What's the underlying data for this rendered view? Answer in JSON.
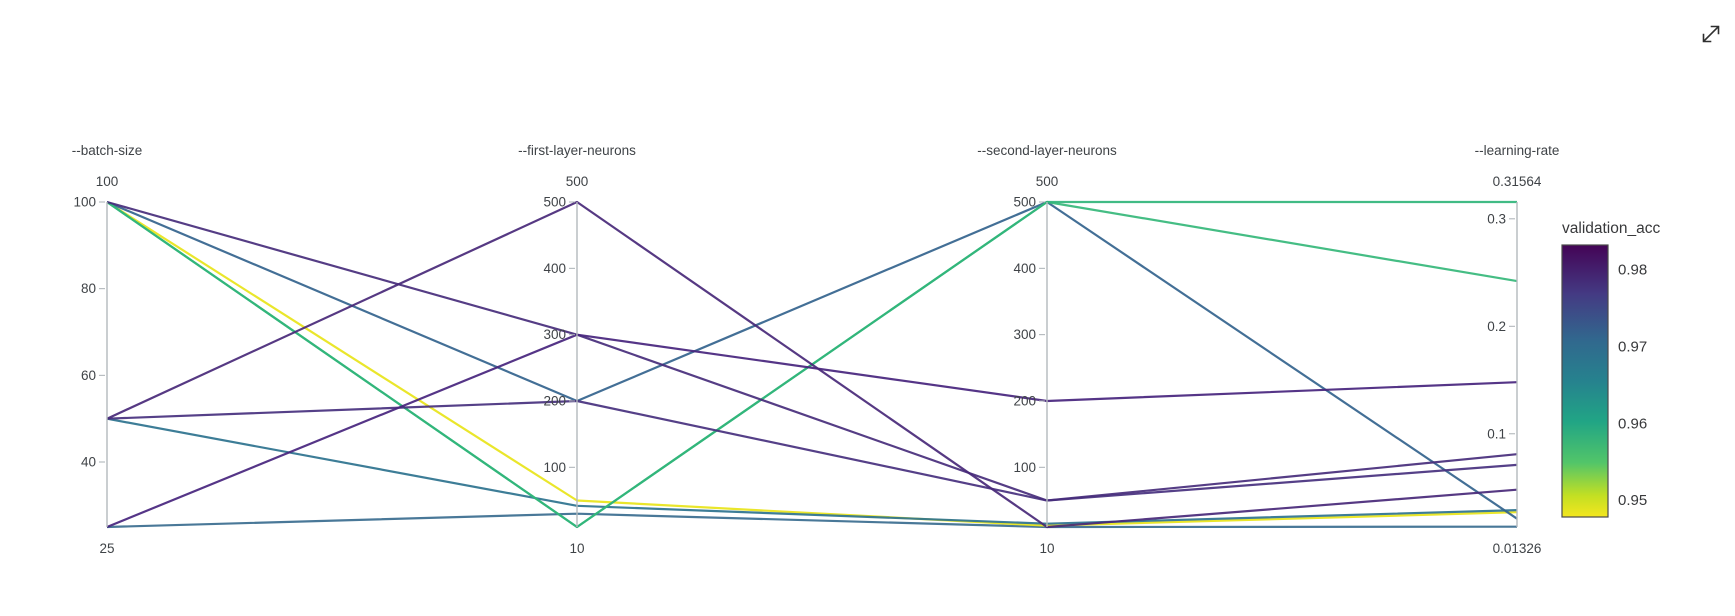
{
  "expand_button": {
    "icon": "expand-diagonal-icon"
  },
  "colorbar": {
    "title": "validation_acc",
    "domain_min": 0.9478,
    "domain_max": 0.9832,
    "ticks": [
      {
        "value": 0.98,
        "label": "0.98"
      },
      {
        "value": 0.97,
        "label": "0.97"
      },
      {
        "value": 0.96,
        "label": "0.96"
      },
      {
        "value": 0.95,
        "label": "0.95"
      }
    ],
    "gradient_top_to_bottom": [
      [
        "0%",
        "#440456"
      ],
      [
        "18%",
        "#443a83"
      ],
      [
        "35%",
        "#31688e"
      ],
      [
        "50%",
        "#26828e"
      ],
      [
        "65%",
        "#21a585"
      ],
      [
        "80%",
        "#52c569"
      ],
      [
        "92%",
        "#c2df23"
      ],
      [
        "100%",
        "#f4e61e"
      ]
    ]
  },
  "chart_data": {
    "type": "parallel-coordinates",
    "color_by": "validation_acc",
    "legend_position": "right",
    "axes": [
      {
        "key": "batch_size",
        "title": "--batch-size",
        "max_label": "100",
        "min_label": "25",
        "range": [
          25,
          100
        ],
        "ticks": [
          {
            "value": 100,
            "label": "100"
          },
          {
            "value": 80,
            "label": "80"
          },
          {
            "value": 60,
            "label": "60"
          },
          {
            "value": 40,
            "label": "40"
          }
        ]
      },
      {
        "key": "first_layer_neurons",
        "title": "--first-layer-neurons",
        "max_label": "500",
        "min_label": "10",
        "range": [
          10,
          500
        ],
        "ticks": [
          {
            "value": 500,
            "label": "500"
          },
          {
            "value": 400,
            "label": "400"
          },
          {
            "value": 300,
            "label": "300"
          },
          {
            "value": 200,
            "label": "200"
          },
          {
            "value": 100,
            "label": "100"
          }
        ]
      },
      {
        "key": "second_layer_neurons",
        "title": "--second-layer-neurons",
        "max_label": "500",
        "min_label": "10",
        "range": [
          10,
          500
        ],
        "ticks": [
          {
            "value": 500,
            "label": "500"
          },
          {
            "value": 400,
            "label": "400"
          },
          {
            "value": 300,
            "label": "300"
          },
          {
            "value": 200,
            "label": "200"
          },
          {
            "value": 100,
            "label": "100"
          }
        ]
      },
      {
        "key": "learning_rate",
        "title": "--learning-rate",
        "max_label": "0.31564",
        "min_label": "0.01326",
        "range": [
          0.01326,
          0.31564
        ],
        "ticks": [
          {
            "value": 0.3,
            "label": "0.3"
          },
          {
            "value": 0.2,
            "label": "0.2"
          },
          {
            "value": 0.1,
            "label": "0.1"
          }
        ]
      }
    ],
    "runs": [
      {
        "batch_size": 25,
        "first_layer_neurons": 30,
        "second_layer_neurons": 10,
        "learning_rate": 0.0135,
        "validation_acc": 0.97,
        "color": "#3a6c8f"
      },
      {
        "batch_size": 100,
        "first_layer_neurons": 50,
        "second_layer_neurons": 12,
        "learning_rate": 0.027,
        "validation_acc": 0.949,
        "color": "#e8e419"
      },
      {
        "batch_size": 50,
        "first_layer_neurons": 42,
        "second_layer_neurons": 15,
        "learning_rate": 0.029,
        "validation_acc": 0.968,
        "color": "#2c728e"
      },
      {
        "batch_size": 100,
        "first_layer_neurons": 200,
        "second_layer_neurons": 500,
        "learning_rate": 0.021,
        "validation_acc": 0.971,
        "color": "#33638d"
      },
      {
        "batch_size": 100,
        "first_layer_neurons": 10,
        "second_layer_neurons": 500,
        "learning_rate": 0.242,
        "validation_acc": 0.96,
        "color": "#35b779"
      },
      {
        "batch_size": 100,
        "first_layer_neurons": 10,
        "second_layer_neurons": 500,
        "learning_rate": 0.31564,
        "validation_acc": 0.961,
        "color": "#31b57b"
      },
      {
        "batch_size": 50,
        "first_layer_neurons": 200,
        "second_layer_neurons": 50,
        "learning_rate": 0.071,
        "validation_acc": 0.98,
        "color": "#46307e"
      },
      {
        "batch_size": 100,
        "first_layer_neurons": 300,
        "second_layer_neurons": 50,
        "learning_rate": 0.081,
        "validation_acc": 0.979,
        "color": "#472d7b"
      },
      {
        "batch_size": 25,
        "first_layer_neurons": 300,
        "second_layer_neurons": 200,
        "learning_rate": 0.148,
        "validation_acc": 0.981,
        "color": "#46247d"
      },
      {
        "batch_size": 50,
        "first_layer_neurons": 500,
        "second_layer_neurons": 10,
        "learning_rate": 0.048,
        "validation_acc": 0.98,
        "color": "#482878"
      }
    ]
  }
}
